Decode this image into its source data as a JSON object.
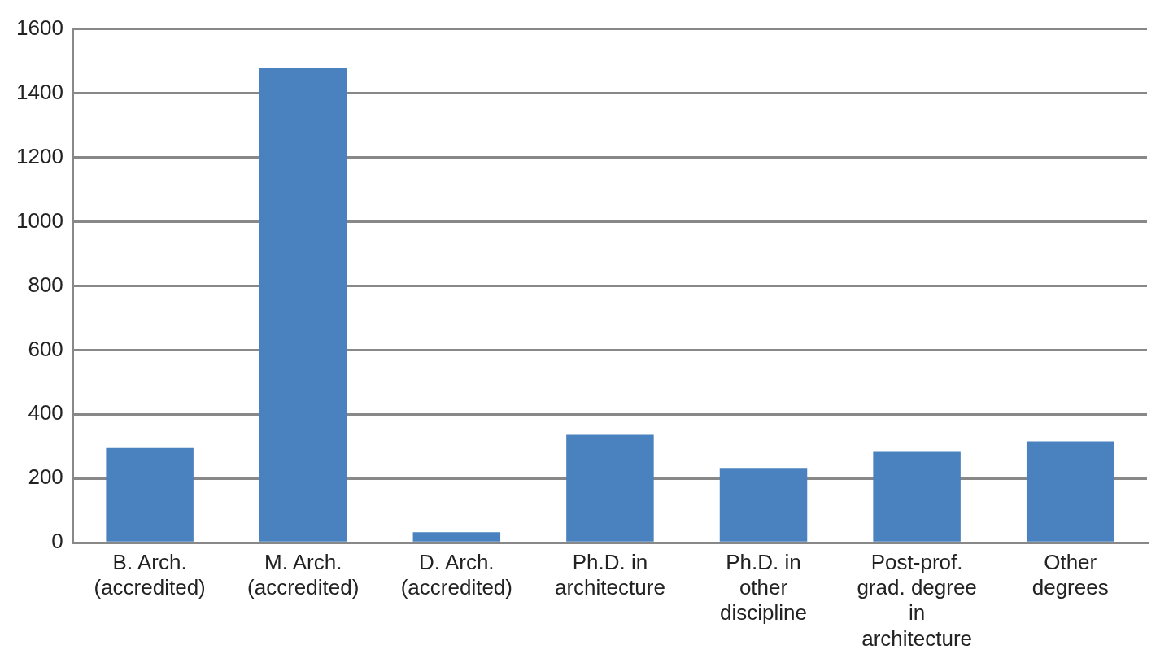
{
  "chart_data": {
    "type": "bar",
    "categories": [
      "B. Arch. (accredited)",
      "M. Arch. (accredited)",
      "D. Arch. (accredited)",
      "Ph.D. in architecture",
      "Ph.D. in other discipline",
      "Post-prof. grad. degree in architecture",
      "Other degrees"
    ],
    "values": [
      295,
      1480,
      33,
      336,
      233,
      283,
      316
    ],
    "color": "#4a81bf",
    "ylim": [
      0,
      1600
    ],
    "yticks": [
      0,
      200,
      400,
      600,
      800,
      1000,
      1200,
      1400,
      1600
    ],
    "grid": "y",
    "legend": false
  }
}
